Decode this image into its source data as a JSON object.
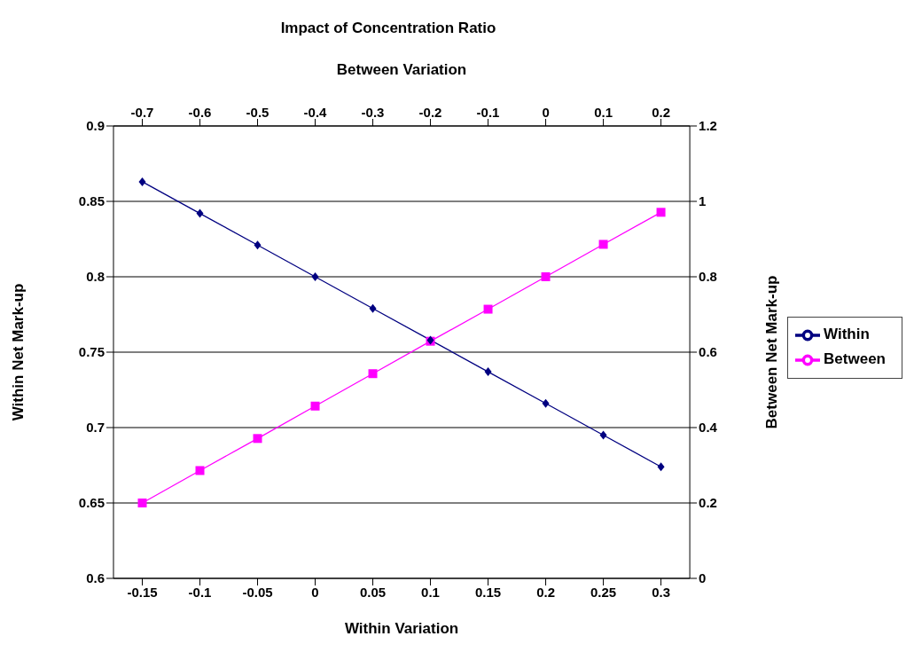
{
  "chart_data": {
    "type": "line",
    "title": "Impact of Concentration Ratio",
    "xlabel": "Within Variation",
    "x2label": "Between Variation",
    "ylabel": "Within Net Mark-up",
    "y2label": "Between Net Mark-up",
    "x": [
      -0.15,
      -0.1,
      -0.05,
      0,
      0.05,
      0.1,
      0.15,
      0.2,
      0.25,
      0.3
    ],
    "xlim": [
      -0.175,
      0.325
    ],
    "xticks": [
      -0.15,
      -0.1,
      -0.05,
      0,
      0.05,
      0.1,
      0.15,
      0.2,
      0.25,
      0.3
    ],
    "x2lim": [
      -0.75,
      0.25
    ],
    "x2ticks": [
      -0.7,
      -0.6,
      -0.5,
      -0.4,
      -0.3,
      -0.2,
      -0.1,
      0,
      0.1,
      0.2
    ],
    "ylim": [
      0.6,
      0.9
    ],
    "yticks": [
      0.6,
      0.65,
      0.7,
      0.75,
      0.8,
      0.85,
      0.9
    ],
    "y2lim": [
      0,
      1.2
    ],
    "y2ticks": [
      0,
      0.2,
      0.4,
      0.6,
      0.8,
      1,
      1.2
    ],
    "series": [
      {
        "name": "Within",
        "color": "#000080",
        "marker": "diamond",
        "values": [
          0.863,
          0.842,
          0.821,
          0.8,
          0.779,
          0.758,
          0.737,
          0.716,
          0.695,
          0.674
        ]
      },
      {
        "name": "Between",
        "color": "#ff00ff",
        "marker": "square",
        "axis": "y2",
        "values": [
          0.2,
          0.286,
          0.371,
          0.457,
          0.543,
          0.629,
          0.714,
          0.8,
          0.886,
          0.971
        ]
      }
    ],
    "grid": "y",
    "legend": "right",
    "line_style": "solid"
  }
}
